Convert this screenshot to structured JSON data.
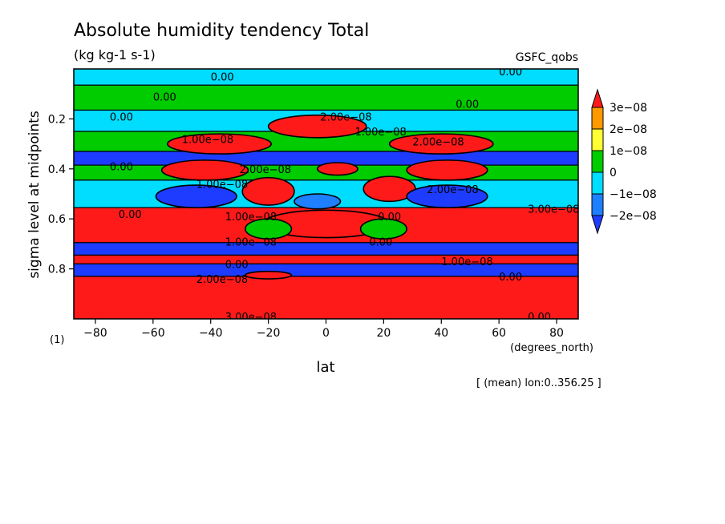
{
  "chart_data": {
    "type": "heatmap",
    "title": "Absolute humidity tendency Total",
    "subtitle": "(kg kg-1 s-1)",
    "source_label": "GSFC_qobs",
    "xlabel": "lat",
    "x_units": "(degrees_north)",
    "ylabel": "sigma level at midpoints",
    "y_units": "(1)",
    "annotation": "[ (mean) lon:0..356.25 ]",
    "xlim": [
      -87.5,
      87.5
    ],
    "ylim": [
      0.0,
      1.0
    ],
    "y_inverted": true,
    "x_ticks": [
      -80,
      -60,
      -40,
      -20,
      0,
      20,
      40,
      60,
      80
    ],
    "x_tick_labels": [
      "−80",
      "−60",
      "−40",
      "−20",
      "0",
      "20",
      "40",
      "60",
      "80"
    ],
    "y_ticks": [
      0.2,
      0.4,
      0.6,
      0.8
    ],
    "y_tick_labels": [
      "0.2",
      "0.4",
      "0.6",
      "0.8"
    ],
    "legend": {
      "placement": "right",
      "levels": [
        "3e−08",
        "2e−08",
        "1e−08",
        "0",
        "−1e−08",
        "−2e−08"
      ],
      "colors": [
        "#ff1a1a",
        "#ff9900",
        "#ffff33",
        "#00cc00",
        "#00ddff",
        "#1e7fff",
        "#1e3cff"
      ]
    },
    "contour_labels": [
      "0.00",
      "2.00e−08",
      "1.00e−08",
      "3.00e−08"
    ],
    "bands": [
      {
        "y0": 0.0,
        "y1": 0.065,
        "color": "#00ddff"
      },
      {
        "y0": 0.065,
        "y1": 0.165,
        "color": "#00cc00"
      },
      {
        "y0": 0.165,
        "y1": 0.25,
        "color": "#00ddff"
      },
      {
        "y0": 0.25,
        "y1": 0.33,
        "color": "#00cc00"
      },
      {
        "y0": 0.33,
        "y1": 0.385,
        "color": "#1e3cff"
      },
      {
        "y0": 0.385,
        "y1": 0.445,
        "color": "#00cc00"
      },
      {
        "y0": 0.445,
        "y1": 0.555,
        "color": "#00ddff"
      },
      {
        "y0": 0.555,
        "y1": 0.695,
        "color": "#ff1a1a"
      },
      {
        "y0": 0.695,
        "y1": 0.745,
        "color": "#1e3cff"
      },
      {
        "y0": 0.745,
        "y1": 0.78,
        "color": "#ff1a1a"
      },
      {
        "y0": 0.78,
        "y1": 0.83,
        "color": "#1e3cff"
      },
      {
        "y0": 0.83,
        "y1": 1.0,
        "color": "#ff1a1a"
      }
    ],
    "blobs": [
      {
        "cx": -37,
        "cy": 0.3,
        "rx": 18,
        "ry": 0.04,
        "color": "#ff1a1a"
      },
      {
        "cx": 40,
        "cy": 0.3,
        "rx": 18,
        "ry": 0.04,
        "color": "#ff1a1a"
      },
      {
        "cx": -3,
        "cy": 0.23,
        "rx": 17,
        "ry": 0.045,
        "color": "#ff1a1a"
      },
      {
        "cx": -42,
        "cy": 0.405,
        "rx": 15,
        "ry": 0.04,
        "color": "#ff1a1a"
      },
      {
        "cx": 42,
        "cy": 0.405,
        "rx": 14,
        "ry": 0.04,
        "color": "#ff1a1a"
      },
      {
        "cx": 4,
        "cy": 0.4,
        "rx": 7,
        "ry": 0.025,
        "color": "#ff1a1a"
      },
      {
        "cx": -20,
        "cy": 0.49,
        "rx": 9,
        "ry": 0.055,
        "color": "#ff1a1a"
      },
      {
        "cx": 22,
        "cy": 0.48,
        "rx": 9,
        "ry": 0.05,
        "color": "#ff1a1a"
      },
      {
        "cx": -45,
        "cy": 0.51,
        "rx": 14,
        "ry": 0.045,
        "color": "#1e3cff"
      },
      {
        "cx": 42,
        "cy": 0.51,
        "rx": 14,
        "ry": 0.045,
        "color": "#1e3cff"
      },
      {
        "cx": -3,
        "cy": 0.53,
        "rx": 8,
        "ry": 0.03,
        "color": "#1e7fff"
      },
      {
        "cx": 0,
        "cy": 0.62,
        "rx": 22,
        "ry": 0.055,
        "color": "#ff1a1a"
      },
      {
        "cx": -20,
        "cy": 0.64,
        "rx": 8,
        "ry": 0.04,
        "color": "#00cc00"
      },
      {
        "cx": 20,
        "cy": 0.64,
        "rx": 8,
        "ry": 0.04,
        "color": "#00cc00"
      },
      {
        "cx": -20,
        "cy": 0.825,
        "rx": 8,
        "ry": 0.015,
        "color": "#ff1a1a"
      }
    ]
  }
}
